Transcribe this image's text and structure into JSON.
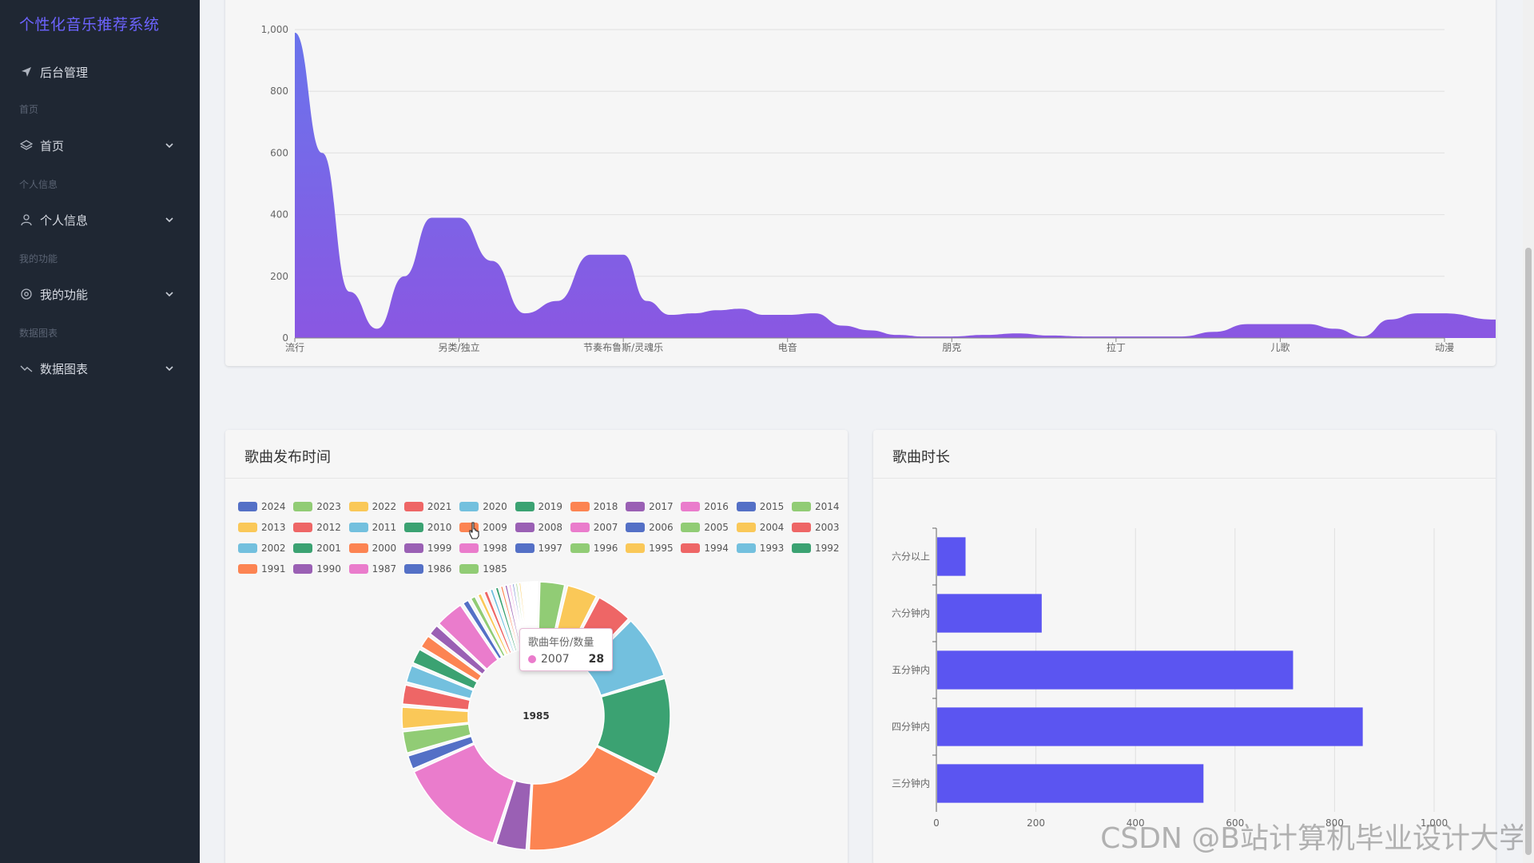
{
  "app": {
    "title": "个性化音乐推荐系统"
  },
  "sidebar": {
    "items": [
      {
        "label": "后台管理",
        "icon": "send-icon",
        "top": 70
      },
      {
        "group": "首页"
      },
      {
        "label": "首页",
        "icon": "layers-icon"
      },
      {
        "group": "个人信息"
      },
      {
        "label": "个人信息",
        "icon": "user-icon"
      },
      {
        "group": "我的功能"
      },
      {
        "label": "我的功能",
        "icon": "settings-icon"
      },
      {
        "group": "数据图表"
      },
      {
        "label": "数据图表",
        "icon": "trend-icon"
      }
    ]
  },
  "colors": {
    "palette": [
      "#5470c6",
      "#91cc75",
      "#fac858",
      "#ee6666",
      "#73c0de",
      "#3ba272",
      "#fc8452",
      "#9a60b4",
      "#ea7ccc"
    ],
    "area_top": "#6a74ec",
    "area_bottom": "#8a57e2",
    "bar": "#5b55f1"
  },
  "area_chart": {
    "chart_data": {
      "type": "area",
      "categories": [
        "流行",
        "另类/独立",
        "节奏布鲁斯/灵魂乐",
        "电音",
        "朋克",
        "拉丁",
        "儿歌",
        "动漫"
      ],
      "values": [
        990,
        390,
        270,
        75,
        80,
        5,
        45,
        80
      ],
      "ylim": [
        0,
        1000
      ],
      "yticks": [
        "0",
        "200",
        "400",
        "600",
        "800",
        "1,000"
      ],
      "grid": true
    }
  },
  "pie_panel": {
    "title": "歌曲发布时间",
    "center_label": "1985",
    "tooltip": {
      "title": "歌曲年份/数量",
      "name": "2007",
      "value": "28"
    }
  },
  "pie_chart": {
    "chart_data": {
      "type": "pie",
      "legend_position": "top",
      "categories": [
        "2024",
        "2023",
        "2022",
        "2021",
        "2020",
        "2019",
        "2018",
        "2017",
        "2016",
        "2015",
        "2014",
        "2013",
        "2012",
        "2011",
        "2010",
        "2009",
        "2008",
        "2007",
        "2006",
        "2005",
        "2004",
        "2003",
        "2002",
        "2001",
        "2000",
        "1999",
        "1998",
        "1997",
        "1996",
        "1995",
        "1994",
        "1993",
        "1992",
        "1991",
        "1990",
        "1987",
        "1986",
        "1985"
      ],
      "values": [
        2,
        25,
        30,
        35,
        60,
        90,
        140,
        30,
        100,
        15,
        22,
        22,
        20,
        18,
        16,
        14,
        12,
        28,
        8,
        7,
        6,
        6,
        5,
        5,
        4,
        4,
        3,
        3,
        3,
        3,
        2,
        2,
        2,
        2,
        2,
        1,
        1,
        1
      ]
    }
  },
  "bar_panel": {
    "title": "歌曲时长"
  },
  "bar_chart": {
    "chart_data": {
      "type": "bar",
      "orientation": "horizontal",
      "categories": [
        "六分以上",
        "六分钟内",
        "五分钟内",
        "四分钟内",
        "三分钟内"
      ],
      "values": [
        57,
        210,
        715,
        855,
        535
      ],
      "xlim": [
        0,
        1000
      ],
      "xticks": [
        "0",
        "200",
        "400",
        "600",
        "800",
        "1,000"
      ],
      "grid": true
    }
  },
  "watermark": "CSDN @B站计算机毕业设计大学"
}
